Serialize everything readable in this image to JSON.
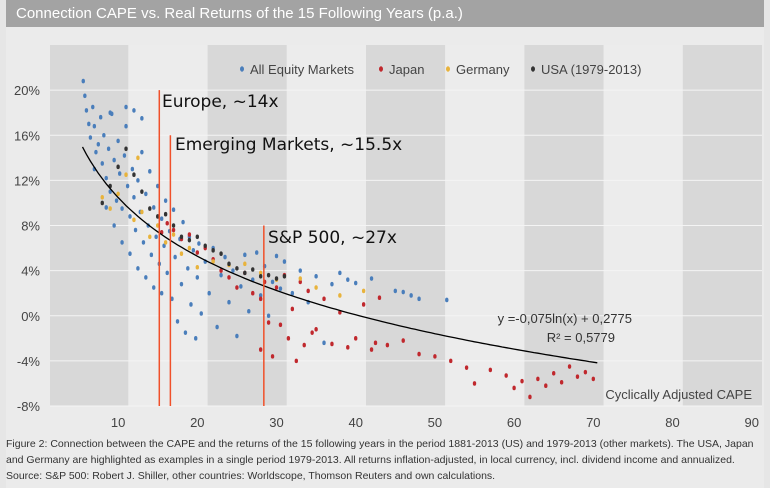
{
  "title": "Connection CAPE vs. Real Returns of the 15 Following Years (p.a.)",
  "caption": "Figure 2: Connection between the CAPE and the returns of the 15 following years in the period 1881-2013 (US) and 1979-2013 (other markets). The USA, Japan and Germany are highlighted as examples in a single period 1979-2013. All returns inflation-adjusted, in local currency, incl. dividend income and annualized. Source: S&P 500: Robert J. Shiller, other countries: Worldscope, Thomson Reuters and own calculations.",
  "chart_data": {
    "type": "scatter",
    "title": "Connection CAPE vs. Real Returns of the 15 Following Years (p.a.)",
    "xlabel": "Cyclically Adjusted CAPE",
    "ylabel": "",
    "xlim": [
      1.4,
      91.3
    ],
    "ylim": [
      -8,
      24
    ],
    "xticks": [
      10,
      20,
      30,
      40,
      50,
      60,
      70,
      80,
      90
    ],
    "yticks": [
      20,
      16,
      12,
      8,
      4,
      0,
      -4,
      -8
    ],
    "ytick_labels": [
      "20%",
      "16%",
      "12%",
      "8%",
      "4%",
      "0%",
      "-4%",
      "-8%"
    ],
    "legend_position": "top",
    "series": [
      {
        "name": "All Equity Markets",
        "color": "#4a7ebb",
        "points": [
          [
            5.6,
            20.8
          ],
          [
            5.8,
            19.5
          ],
          [
            6,
            18.2
          ],
          [
            6.3,
            17
          ],
          [
            6.5,
            15.8
          ],
          [
            6.8,
            18.5
          ],
          [
            7,
            16.8
          ],
          [
            7.2,
            14.5
          ],
          [
            7.5,
            15.2
          ],
          [
            7.8,
            17.6
          ],
          [
            8,
            13.5
          ],
          [
            8.2,
            16
          ],
          [
            8.5,
            12.2
          ],
          [
            8.8,
            14.8
          ],
          [
            9,
            11
          ],
          [
            9.2,
            17.9
          ],
          [
            9.5,
            13.8
          ],
          [
            9.8,
            10.2
          ],
          [
            10,
            15.5
          ],
          [
            10.2,
            12.6
          ],
          [
            10.5,
            9.5
          ],
          [
            10.8,
            14.2
          ],
          [
            11,
            16.8
          ],
          [
            11.2,
            11.5
          ],
          [
            11.5,
            8.8
          ],
          [
            11.8,
            13
          ],
          [
            12,
            10.5
          ],
          [
            12.2,
            7.6
          ],
          [
            12.5,
            12
          ],
          [
            12.8,
            9.2
          ],
          [
            13,
            14.5
          ],
          [
            13.2,
            6.5
          ],
          [
            13.5,
            10.8
          ],
          [
            13.8,
            8
          ],
          [
            14,
            12.8
          ],
          [
            14.2,
            5.4
          ],
          [
            14.5,
            9.6
          ],
          [
            14.8,
            7
          ],
          [
            15,
            11.5
          ],
          [
            15.2,
            4.6
          ],
          [
            15.5,
            8.6
          ],
          [
            15.8,
            6.2
          ],
          [
            16,
            10.2
          ],
          [
            16.2,
            3.8
          ],
          [
            16.5,
            7.5
          ],
          [
            16.8,
            1.5
          ],
          [
            17,
            9.4
          ],
          [
            17.2,
            5.2
          ],
          [
            17.5,
            -0.5
          ],
          [
            17.8,
            6.8
          ],
          [
            18,
            2.8
          ],
          [
            18.2,
            8.3
          ],
          [
            18.5,
            -1.5
          ],
          [
            18.8,
            4.2
          ],
          [
            19,
            7
          ],
          [
            19.2,
            1
          ],
          [
            19.5,
            5.8
          ],
          [
            19.8,
            -2
          ],
          [
            20,
            3.4
          ],
          [
            20.2,
            6.4
          ],
          [
            20.5,
            0.2
          ],
          [
            21,
            4.8
          ],
          [
            21.5,
            2
          ],
          [
            22,
            6
          ],
          [
            22.5,
            -1
          ],
          [
            23,
            3.6
          ],
          [
            23.5,
            5.2
          ],
          [
            24,
            1.2
          ],
          [
            24.5,
            4
          ],
          [
            25,
            -1.8
          ],
          [
            25.5,
            2.6
          ],
          [
            26,
            5.4
          ],
          [
            26.5,
            0.4
          ],
          [
            27,
            3.2
          ],
          [
            27.5,
            5.6
          ],
          [
            28,
            1.8
          ],
          [
            28.5,
            4.4
          ],
          [
            29,
            0
          ],
          [
            29.5,
            3
          ],
          [
            30,
            5.3
          ],
          [
            30.5,
            2.4
          ],
          [
            31,
            4.8
          ],
          [
            32,
            2
          ],
          [
            33,
            4
          ],
          [
            34,
            1.2
          ],
          [
            35,
            3.5
          ],
          [
            36,
            -2.4
          ],
          [
            37,
            2.8
          ],
          [
            38,
            3.8
          ],
          [
            39,
            3.2
          ],
          [
            40,
            2.9
          ],
          [
            42,
            3.3
          ],
          [
            45,
            2.2
          ],
          [
            46,
            2.1
          ],
          [
            47,
            1.8
          ],
          [
            48,
            1.5
          ],
          [
            51.5,
            1.4
          ],
          [
            7,
            13
          ],
          [
            8.5,
            9.6
          ],
          [
            9.5,
            8
          ],
          [
            10.5,
            6.5
          ],
          [
            11.5,
            5.5
          ],
          [
            12.5,
            4.2
          ],
          [
            13.5,
            3.4
          ],
          [
            14.5,
            2.5
          ],
          [
            15.5,
            2
          ],
          [
            12,
            18.2
          ],
          [
            13,
            17.5
          ],
          [
            11,
            18.5
          ],
          [
            9,
            18
          ]
        ]
      },
      {
        "name": "Japan",
        "color": "#c0282d",
        "points": [
          [
            15.5,
            7.4
          ],
          [
            16.2,
            8.2
          ],
          [
            17,
            7.6
          ],
          [
            18,
            6.8
          ],
          [
            19,
            7.2
          ],
          [
            20,
            5.6
          ],
          [
            21,
            6
          ],
          [
            22,
            5
          ],
          [
            23,
            4
          ],
          [
            24,
            3.4
          ],
          [
            25,
            2.5
          ],
          [
            26,
            3.8
          ],
          [
            27,
            2
          ],
          [
            28,
            1.5
          ],
          [
            28.5,
            3
          ],
          [
            29,
            -0.6
          ],
          [
            30,
            2.5
          ],
          [
            31,
            3.6
          ],
          [
            32,
            0.6
          ],
          [
            33,
            3
          ],
          [
            34,
            2.2
          ],
          [
            35,
            -1.2
          ],
          [
            36,
            1.5
          ],
          [
            37,
            -2.5
          ],
          [
            38,
            0.3
          ],
          [
            39,
            -2.8
          ],
          [
            40,
            -2
          ],
          [
            41,
            1
          ],
          [
            42,
            -3
          ],
          [
            42.5,
            -2.4
          ],
          [
            43,
            1.6
          ],
          [
            44,
            -2.6
          ],
          [
            46,
            -2.2
          ],
          [
            48,
            -3.4
          ],
          [
            50,
            -3.6
          ],
          [
            52,
            -4
          ],
          [
            54,
            -4.6
          ],
          [
            55,
            -6
          ],
          [
            57,
            -4.8
          ],
          [
            59,
            -5.3
          ],
          [
            60,
            -6.4
          ],
          [
            61,
            -5.8
          ],
          [
            62,
            -7.2
          ],
          [
            63,
            -5.6
          ],
          [
            64,
            -6.2
          ],
          [
            65,
            -5.1
          ],
          [
            66,
            -5.9
          ],
          [
            67,
            -4.5
          ],
          [
            68,
            -5.4
          ],
          [
            69,
            -5
          ],
          [
            70,
            -5.6
          ],
          [
            30.5,
            -0.8
          ],
          [
            31.5,
            -2
          ],
          [
            32.5,
            -4
          ],
          [
            33.5,
            -2.6
          ],
          [
            34.5,
            -1.5
          ],
          [
            28,
            -3
          ],
          [
            29.5,
            -3.6
          ]
        ]
      },
      {
        "name": "Germany",
        "color": "#e8b33c",
        "points": [
          [
            9,
            9.5
          ],
          [
            10,
            10.8
          ],
          [
            11,
            12.5
          ],
          [
            12,
            8.5
          ],
          [
            13,
            9.2
          ],
          [
            14,
            7
          ],
          [
            15,
            8
          ],
          [
            16,
            6.5
          ],
          [
            17,
            7.2
          ],
          [
            18,
            5.5
          ],
          [
            19,
            6
          ],
          [
            20,
            4.3
          ],
          [
            22,
            4.8
          ],
          [
            24,
            4.5
          ],
          [
            26,
            4.6
          ],
          [
            28,
            3.8
          ],
          [
            30,
            3.2
          ],
          [
            33,
            3.3
          ],
          [
            35,
            2.5
          ],
          [
            38,
            1.8
          ],
          [
            41,
            2.2
          ],
          [
            8,
            10.5
          ],
          [
            12.5,
            14
          ]
        ]
      },
      {
        "name": "USA (1979-2013)",
        "color": "#333333",
        "points": [
          [
            8,
            10
          ],
          [
            9,
            11.5
          ],
          [
            10,
            13.2
          ],
          [
            11,
            14.8
          ],
          [
            12,
            12.5
          ],
          [
            13,
            11
          ],
          [
            14,
            9.5
          ],
          [
            15,
            8.8
          ],
          [
            16,
            9
          ],
          [
            17,
            8
          ],
          [
            18,
            7
          ],
          [
            19,
            6.7
          ],
          [
            20,
            7
          ],
          [
            21,
            6.2
          ],
          [
            22,
            5.8
          ],
          [
            23,
            5.5
          ],
          [
            24,
            4.6
          ],
          [
            25,
            4.2
          ],
          [
            26,
            3.8
          ],
          [
            27,
            4.1
          ],
          [
            28,
            3.5
          ],
          [
            29,
            3.6
          ],
          [
            30,
            3.3
          ],
          [
            31,
            3.5
          ]
        ]
      }
    ],
    "trendline": {
      "equation": "y =-0,075ln(x) + 0,2775",
      "r2": "R² = 0,5779",
      "a": -0.075,
      "b": 0.2775,
      "x_range": [
        5.5,
        70.5
      ],
      "color": "#000000"
    },
    "annotations": [
      {
        "label": "Europe, ~14x",
        "x": 15.2,
        "top": 20
      },
      {
        "label": "Emerging Markets, ~15.5x",
        "x": 16.6,
        "top": 16
      },
      {
        "label": "S&P 500, ~27x",
        "x": 28.4,
        "top": 8
      }
    ],
    "annotation_color": "#f0502a"
  }
}
